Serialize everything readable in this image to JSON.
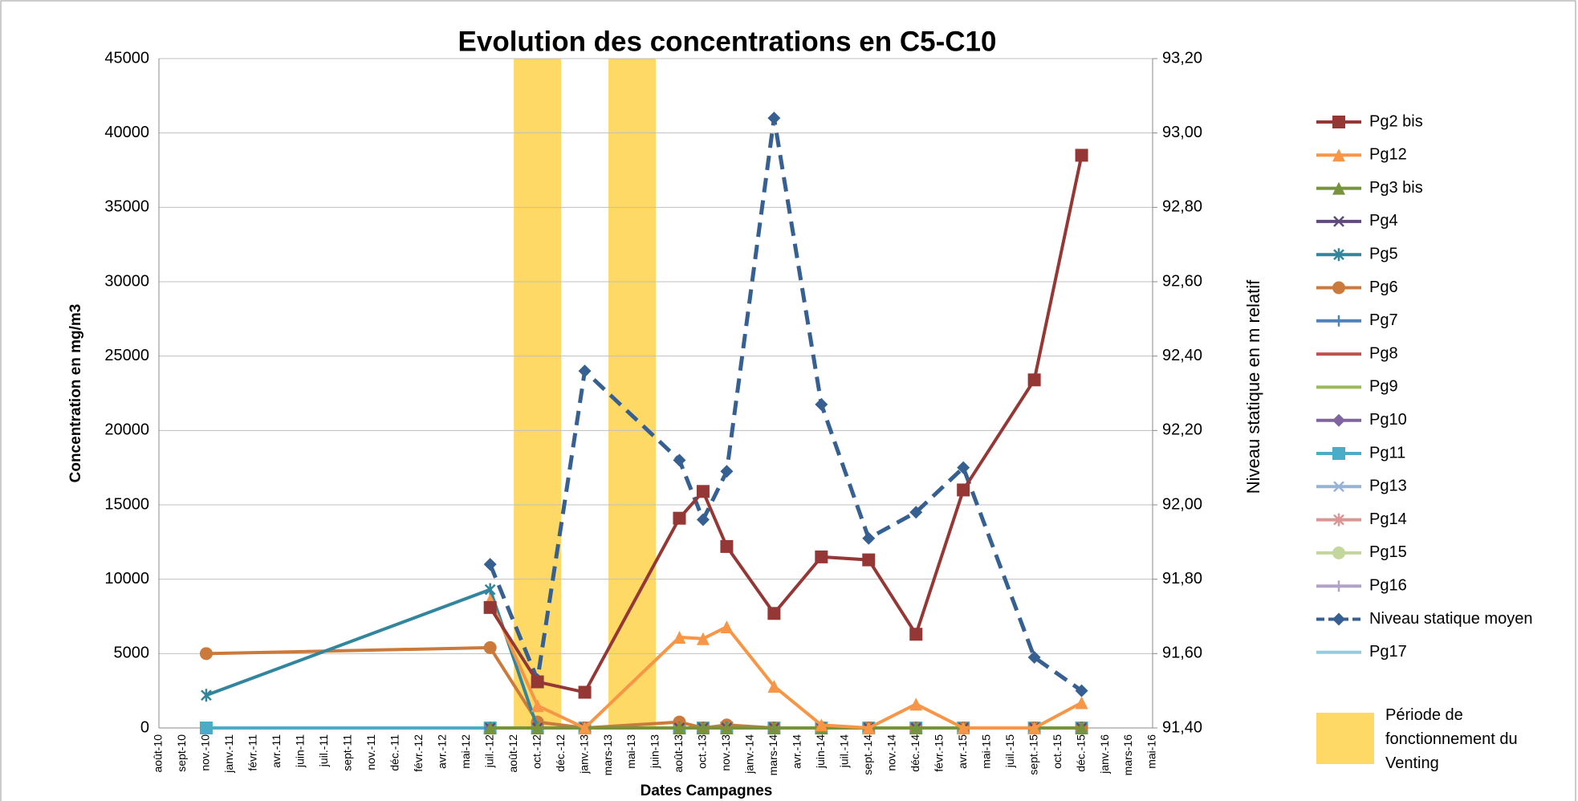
{
  "chart_data": {
    "type": "line",
    "title": "Evolution des concentrations en C5-C10",
    "x_label": "Dates Campagnes",
    "y_label": "Concentration en mg/m3",
    "y2_label": "Niveau statique en m relatif",
    "categories": [
      "août-10",
      "sept-10",
      "nov.-10",
      "janv.-11",
      "févr.-11",
      "avr.-11",
      "juin-11",
      "juil.-11",
      "sept-11",
      "nov.-11",
      "déc.-11",
      "févr.-12",
      "avr.-12",
      "mai-12",
      "juil.-12",
      "août-12",
      "oct.-12",
      "déc.-12",
      "janv.-13",
      "mars-13",
      "mai-13",
      "juin-13",
      "août-13",
      "oct.-13",
      "nov.-13",
      "janv.-14",
      "mars-14",
      "avr.-14",
      "juin-14",
      "juil.-14",
      "sept.-14",
      "nov.-14",
      "déc.-14",
      "févr.-15",
      "avr.-15",
      "mai-15",
      "juil.-15",
      "sept.-15",
      "oct.-15",
      "déc.-15",
      "janv.-16",
      "mars-16",
      "mai-16"
    ],
    "ylim": [
      0,
      45000
    ],
    "yticks": [
      0,
      5000,
      10000,
      15000,
      20000,
      25000,
      30000,
      35000,
      40000,
      45000
    ],
    "y2lim": [
      91.4,
      93.2
    ],
    "y2ticks": [
      {
        "value": 91.4,
        "label": "91,40"
      },
      {
        "value": 91.6,
        "label": "91,60"
      },
      {
        "value": 91.8,
        "label": "91,80"
      },
      {
        "value": 92.0,
        "label": "92,00"
      },
      {
        "value": 92.2,
        "label": "92,20"
      },
      {
        "value": 92.4,
        "label": "92,40"
      },
      {
        "value": 92.6,
        "label": "92,60"
      },
      {
        "value": 92.8,
        "label": "92,80"
      },
      {
        "value": 93.0,
        "label": "93,00"
      },
      {
        "value": 93.2,
        "label": "93,20"
      }
    ],
    "grid": true,
    "legend": "right",
    "venting_label": "Période de fonctionnement du Venting",
    "venting_color": "#ffd966",
    "venting_periods": [
      [
        "août-12",
        "déc.-12"
      ],
      [
        "mars-13",
        "juin-13"
      ]
    ],
    "series": [
      {
        "name": "Pg2 bis",
        "color": "#953735",
        "marker": "square",
        "x": [
          "juil.-12",
          "oct.-12",
          "janv.-13",
          "août-13",
          "oct.-13",
          "nov.-13",
          "mars-14",
          "juin-14",
          "sept.-14",
          "déc.-14",
          "avr.-15",
          "sept.-15",
          "déc.-15"
        ],
        "values": [
          8100,
          3100,
          2400,
          14100,
          15900,
          12200,
          7700,
          11500,
          11300,
          6300,
          16000,
          23400,
          38500
        ]
      },
      {
        "name": "Pg12",
        "color": "#f79646",
        "marker": "triangle",
        "x": [
          "juil.-12",
          "oct.-12",
          "janv.-13",
          "août-13",
          "oct.-13",
          "nov.-13",
          "mars-14",
          "juin-14",
          "sept.-14",
          "déc.-14",
          "avr.-15",
          "sept.-15",
          "déc.-15"
        ],
        "values": [
          8600,
          1500,
          0,
          6100,
          6000,
          6800,
          2800,
          200,
          0,
          1600,
          0,
          0,
          1700
        ]
      },
      {
        "name": "Pg3 bis",
        "color": "#77933c",
        "marker": "triangle",
        "x": [
          "juil.-12",
          "oct.-12",
          "janv.-13",
          "août-13",
          "oct.-13",
          "nov.-13",
          "mars-14",
          "juin-14",
          "sept.-14",
          "déc.-14",
          "avr.-15",
          "sept.-15",
          "déc.-15"
        ],
        "values": [
          0,
          0,
          0,
          0,
          0,
          0,
          0,
          0,
          0,
          0,
          0,
          0,
          0
        ]
      },
      {
        "name": "Pg4",
        "color": "#604a7b",
        "marker": "x",
        "x": [
          "juil.-12",
          "oct.-12",
          "janv.-13",
          "août-13",
          "oct.-13",
          "nov.-13",
          "mars-14",
          "juin-14",
          "sept.-14",
          "déc.-14",
          "avr.-15",
          "sept.-15",
          "déc.-15"
        ],
        "values": [
          0,
          0,
          0,
          0,
          0,
          0,
          0,
          0,
          0,
          0,
          0,
          0,
          0
        ]
      },
      {
        "name": "Pg5",
        "color": "#31859c",
        "marker": "star",
        "x": [
          "nov.-10",
          "juil.-12",
          "oct.-12",
          "janv.-13",
          "août-13",
          "oct.-13",
          "nov.-13",
          "mars-14",
          "juin-14",
          "sept.-14",
          "déc.-14",
          "avr.-15",
          "sept.-15",
          "déc.-15"
        ],
        "values": [
          2200,
          9300,
          0,
          0,
          0,
          0,
          0,
          0,
          0,
          0,
          0,
          0,
          0,
          0
        ]
      },
      {
        "name": "Pg6",
        "color": "#cc7a3c",
        "marker": "circle",
        "x": [
          "nov.-10",
          "juil.-12",
          "oct.-12",
          "janv.-13",
          "août-13",
          "oct.-13",
          "nov.-13",
          "mars-14",
          "juin-14",
          "sept.-14",
          "déc.-14",
          "avr.-15",
          "sept.-15",
          "déc.-15"
        ],
        "values": [
          5000,
          5400,
          400,
          0,
          400,
          0,
          200,
          0,
          0,
          0,
          0,
          0,
          0,
          0
        ]
      },
      {
        "name": "Pg7",
        "color": "#4f81bd",
        "marker": "plus",
        "x": [
          "juil.-12",
          "oct.-12",
          "janv.-13",
          "août-13",
          "oct.-13",
          "nov.-13",
          "mars-14",
          "juin-14",
          "sept.-14",
          "déc.-14",
          "avr.-15",
          "sept.-15",
          "déc.-15"
        ],
        "values": [
          0,
          0,
          0,
          0,
          0,
          0,
          0,
          0,
          0,
          0,
          0,
          0,
          0
        ]
      },
      {
        "name": "Pg8",
        "color": "#c0504d",
        "marker": "dash",
        "x": [
          "juil.-12",
          "oct.-12",
          "janv.-13",
          "août-13",
          "oct.-13",
          "nov.-13",
          "mars-14",
          "juin-14",
          "sept.-14",
          "déc.-14",
          "avr.-15",
          "sept.-15",
          "déc.-15"
        ],
        "values": [
          0,
          0,
          0,
          0,
          0,
          0,
          0,
          0,
          0,
          0,
          0,
          0,
          0
        ]
      },
      {
        "name": "Pg9",
        "color": "#9bbb59",
        "marker": "dash",
        "x": [
          "juil.-12",
          "oct.-12",
          "janv.-13",
          "août-13",
          "oct.-13",
          "nov.-13",
          "mars-14",
          "juin-14",
          "sept.-14",
          "déc.-14",
          "avr.-15",
          "sept.-15",
          "déc.-15"
        ],
        "values": [
          0,
          0,
          0,
          0,
          0,
          0,
          0,
          0,
          0,
          0,
          0,
          0,
          0
        ]
      },
      {
        "name": "Pg10",
        "color": "#8064a2",
        "marker": "diamond",
        "x": [
          "juil.-12",
          "oct.-12",
          "janv.-13",
          "août-13",
          "oct.-13",
          "nov.-13",
          "mars-14",
          "juin-14",
          "sept.-14",
          "déc.-14",
          "avr.-15",
          "sept.-15",
          "déc.-15"
        ],
        "values": [
          0,
          0,
          0,
          0,
          0,
          0,
          0,
          0,
          0,
          0,
          0,
          0,
          0
        ]
      },
      {
        "name": "Pg11",
        "color": "#4bacc6",
        "marker": "square",
        "x": [
          "nov.-10",
          "juil.-12",
          "oct.-12",
          "janv.-13",
          "août-13",
          "oct.-13",
          "nov.-13",
          "mars-14",
          "juin-14",
          "sept.-14",
          "déc.-14",
          "avr.-15",
          "sept.-15",
          "déc.-15"
        ],
        "values": [
          0,
          0,
          0,
          0,
          0,
          0,
          0,
          0,
          0,
          0,
          0,
          0,
          0,
          0
        ]
      },
      {
        "name": "Pg13",
        "color": "#95b3d7",
        "marker": "x",
        "x": [
          "juil.-12",
          "oct.-12",
          "janv.-13",
          "août-13",
          "oct.-13",
          "nov.-13",
          "mars-14",
          "juin-14",
          "sept.-14",
          "déc.-14",
          "avr.-15",
          "sept.-15",
          "déc.-15"
        ],
        "values": [
          0,
          0,
          0,
          0,
          0,
          0,
          0,
          0,
          0,
          0,
          0,
          0,
          0
        ]
      },
      {
        "name": "Pg14",
        "color": "#d99694",
        "marker": "star",
        "x": [
          "juil.-12",
          "oct.-12",
          "janv.-13",
          "août-13",
          "oct.-13",
          "nov.-13",
          "mars-14",
          "juin-14",
          "sept.-14",
          "déc.-14",
          "avr.-15",
          "sept.-15",
          "déc.-15"
        ],
        "values": [
          0,
          0,
          0,
          0,
          0,
          0,
          0,
          0,
          0,
          0,
          0,
          0,
          0
        ]
      },
      {
        "name": "Pg15",
        "color": "#c3d69b",
        "marker": "circle",
        "x": [
          "juil.-12",
          "oct.-12",
          "janv.-13",
          "août-13",
          "oct.-13",
          "nov.-13",
          "mars-14",
          "juin-14",
          "sept.-14",
          "déc.-14",
          "avr.-15",
          "sept.-15",
          "déc.-15"
        ],
        "values": [
          0,
          0,
          0,
          0,
          0,
          0,
          0,
          0,
          0,
          0,
          0,
          0,
          0
        ]
      },
      {
        "name": "Pg16",
        "color": "#b3a2c7",
        "marker": "plus",
        "x": [
          "juil.-12",
          "oct.-12",
          "janv.-13",
          "août-13",
          "oct.-13",
          "nov.-13",
          "mars-14",
          "juin-14",
          "sept.-14",
          "déc.-14",
          "avr.-15",
          "sept.-15",
          "déc.-15"
        ],
        "values": [
          0,
          0,
          0,
          0,
          0,
          0,
          0,
          0,
          0,
          0,
          0,
          0,
          0
        ]
      },
      {
        "name": "Niveau statique moyen",
        "color": "#376092",
        "marker": "diamond",
        "axis": "y2",
        "dashed": true,
        "x": [
          "juil.-12",
          "oct.-12",
          "janv.-13",
          "août-13",
          "oct.-13",
          "nov.-13",
          "mars-14",
          "juin-14",
          "sept.-14",
          "déc.-14",
          "avr.-15",
          "sept.-15",
          "déc.-15"
        ],
        "values": [
          91.84,
          91.53,
          92.36,
          92.12,
          91.96,
          92.09,
          93.04,
          92.27,
          91.91,
          91.98,
          92.1,
          91.59,
          91.5
        ]
      },
      {
        "name": "Pg17",
        "color": "#93cddd",
        "marker": "dash",
        "x": [
          "juil.-12",
          "oct.-12",
          "janv.-13",
          "août-13",
          "oct.-13",
          "nov.-13",
          "mars-14",
          "juin-14",
          "sept.-14",
          "déc.-14",
          "avr.-15",
          "sept.-15",
          "déc.-15"
        ],
        "values": [
          0,
          0,
          0,
          0,
          0,
          0,
          0,
          0,
          0,
          0,
          0,
          0,
          0
        ]
      }
    ]
  }
}
